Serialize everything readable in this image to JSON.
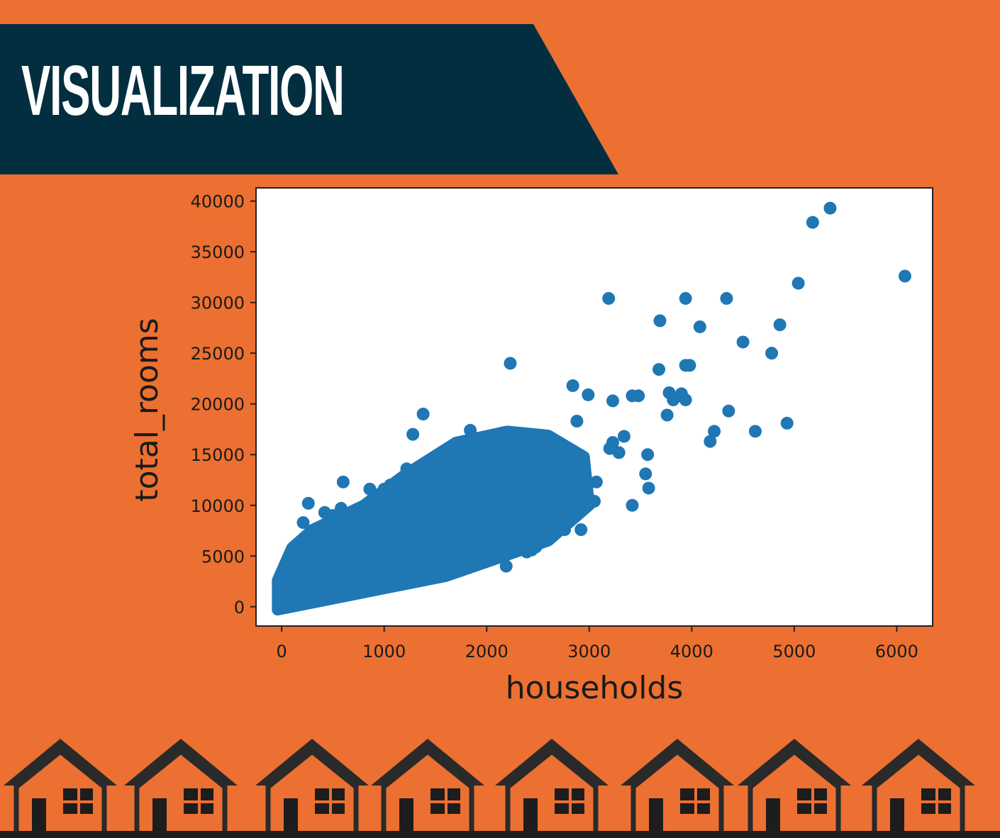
{
  "banner": {
    "title": "VISUALIZATION",
    "background_color": "#022e40",
    "text_color": "#ffffff"
  },
  "page_background": "#ec7031",
  "chart_data": {
    "type": "scatter",
    "title": "",
    "xlabel": "households",
    "ylabel": "total_rooms",
    "xlim": [
      -250,
      6350
    ],
    "ylim": [
      -1900,
      41300
    ],
    "xticks": [
      0,
      1000,
      2000,
      3000,
      4000,
      5000,
      6000
    ],
    "yticks": [
      0,
      5000,
      10000,
      15000,
      20000,
      25000,
      30000,
      35000,
      40000
    ],
    "point_color": "#1f77b4",
    "grid": false,
    "points": [
      [
        6080,
        32600
      ],
      [
        5350,
        39300
      ],
      [
        5180,
        37900
      ],
      [
        5040,
        31900
      ],
      [
        4930,
        18100
      ],
      [
        4860,
        27800
      ],
      [
        4780,
        25000
      ],
      [
        4620,
        17300
      ],
      [
        4500,
        26100
      ],
      [
        4360,
        19300
      ],
      [
        4340,
        30400
      ],
      [
        4220,
        17300
      ],
      [
        4180,
        16300
      ],
      [
        4080,
        27600
      ],
      [
        3980,
        23800
      ],
      [
        3940,
        23800
      ],
      [
        3940,
        20400
      ],
      [
        3940,
        30400
      ],
      [
        3900,
        21000
      ],
      [
        3820,
        20400
      ],
      [
        3780,
        21100
      ],
      [
        3760,
        18900
      ],
      [
        3690,
        28200
      ],
      [
        3680,
        23400
      ],
      [
        3580,
        11700
      ],
      [
        3570,
        15000
      ],
      [
        3550,
        13100
      ],
      [
        3480,
        20800
      ],
      [
        3420,
        10000
      ],
      [
        3420,
        20800
      ],
      [
        3340,
        16800
      ],
      [
        3290,
        15200
      ],
      [
        3230,
        20300
      ],
      [
        3230,
        16200
      ],
      [
        3200,
        15600
      ],
      [
        3190,
        30400
      ],
      [
        3070,
        12300
      ],
      [
        3050,
        10400
      ],
      [
        2990,
        20900
      ],
      [
        2920,
        7600
      ],
      [
        2880,
        18300
      ],
      [
        2840,
        21800
      ],
      [
        2790,
        13700
      ],
      [
        2760,
        7600
      ],
      [
        2700,
        15700
      ],
      [
        2610,
        10100
      ],
      [
        2510,
        9400
      ],
      [
        2480,
        5900
      ],
      [
        2440,
        5600
      ],
      [
        2390,
        5400
      ],
      [
        2300,
        6900
      ],
      [
        2230,
        24000
      ],
      [
        2190,
        4000
      ],
      [
        2150,
        5500
      ],
      [
        2080,
        4900
      ],
      [
        1840,
        17400
      ],
      [
        1820,
        6700
      ],
      [
        1670,
        14400
      ],
      [
        1560,
        11200
      ],
      [
        1460,
        12100
      ],
      [
        1380,
        19000
      ],
      [
        1280,
        17000
      ],
      [
        1220,
        13600
      ],
      [
        1060,
        12000
      ],
      [
        1000,
        11600
      ],
      [
        860,
        11600
      ],
      [
        600,
        12300
      ],
      [
        580,
        9700
      ],
      [
        500,
        9000
      ],
      [
        420,
        9300
      ],
      [
        260,
        10200
      ],
      [
        210,
        8300
      ],
      [
        120,
        5900
      ]
    ]
  }
}
